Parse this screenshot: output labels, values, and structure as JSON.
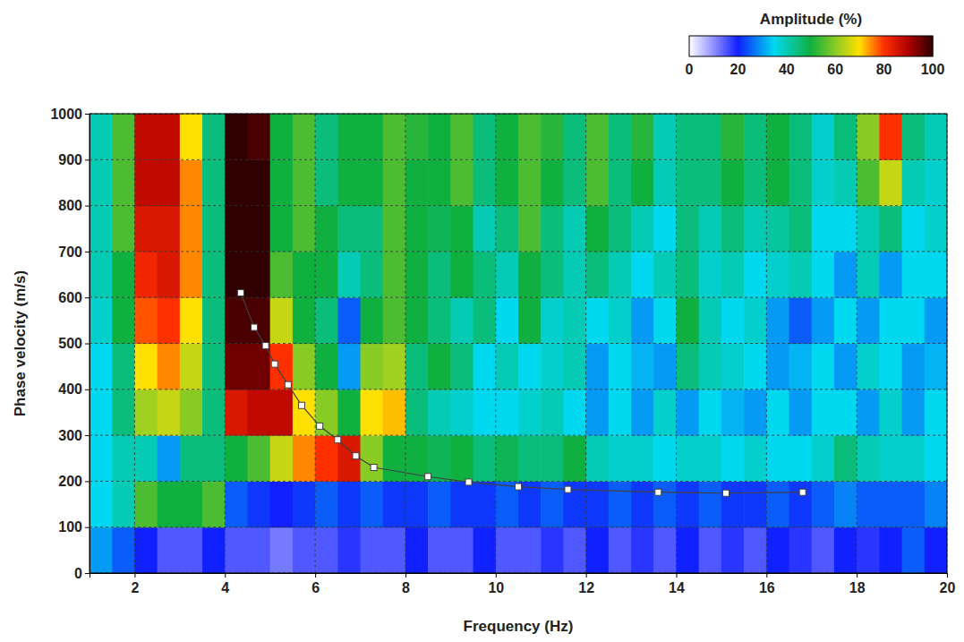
{
  "chart_data": {
    "type": "heatmap",
    "x_label": "Frequency (Hz)",
    "y_label": "Phase velocity (m/s)",
    "xlim": [
      1,
      20
    ],
    "xticks": [
      2,
      4,
      6,
      8,
      10,
      12,
      14,
      16,
      18,
      20
    ],
    "ylim": [
      0,
      1000
    ],
    "yticks": [
      0,
      100,
      200,
      300,
      400,
      500,
      600,
      700,
      800,
      900,
      1000
    ],
    "grid": true,
    "heatmap": {
      "x": [
        1.25,
        1.75,
        2.25,
        2.75,
        3.25,
        3.75,
        4.25,
        4.75,
        5.25,
        5.75,
        6.25,
        6.75,
        7.25,
        7.75,
        8.25,
        8.75,
        9.25,
        9.75,
        10.25,
        10.75,
        11.25,
        11.75,
        12.25,
        12.75,
        13.25,
        13.75,
        14.25,
        14.75,
        15.25,
        15.75,
        16.25,
        16.75,
        17.25,
        17.75,
        18.25,
        18.75,
        19.25,
        19.75
      ],
      "y": [
        50,
        150,
        250,
        350,
        450,
        550,
        650,
        750,
        850,
        950
      ],
      "cells": [
        [
          30,
          25,
          20,
          15,
          15,
          20,
          15,
          15,
          12,
          15,
          15,
          18,
          15,
          15,
          20,
          15,
          15,
          20,
          15,
          15,
          18,
          15,
          20,
          15,
          18,
          15,
          20,
          15,
          18,
          15,
          20,
          18,
          15,
          20,
          18,
          20,
          25,
          20
        ],
        [
          35,
          40,
          55,
          50,
          50,
          55,
          25,
          22,
          20,
          22,
          25,
          22,
          25,
          22,
          22,
          25,
          22,
          22,
          25,
          22,
          25,
          22,
          22,
          25,
          22,
          25,
          22,
          25,
          22,
          22,
          25,
          22,
          25,
          28,
          25,
          25,
          25,
          28
        ],
        [
          35,
          40,
          40,
          30,
          45,
          45,
          50,
          55,
          65,
          75,
          80,
          85,
          60,
          50,
          50,
          48,
          50,
          45,
          48,
          45,
          45,
          50,
          40,
          38,
          38,
          35,
          38,
          38,
          35,
          38,
          35,
          35,
          38,
          45,
          40,
          38,
          38,
          35
        ],
        [
          35,
          45,
          62,
          65,
          60,
          45,
          85,
          88,
          88,
          70,
          60,
          50,
          70,
          72,
          45,
          40,
          38,
          35,
          35,
          38,
          40,
          35,
          30,
          35,
          30,
          38,
          30,
          35,
          32,
          30,
          35,
          30,
          35,
          35,
          30,
          38,
          30,
          35
        ],
        [
          35,
          45,
          70,
          75,
          65,
          45,
          95,
          95,
          80,
          60,
          50,
          30,
          60,
          62,
          45,
          50,
          45,
          35,
          40,
          35,
          38,
          40,
          30,
          35,
          32,
          30,
          45,
          40,
          38,
          35,
          30,
          32,
          35,
          30,
          38,
          35,
          30,
          32
        ],
        [
          38,
          50,
          78,
          80,
          70,
          45,
          98,
          98,
          65,
          50,
          45,
          25,
          50,
          55,
          50,
          45,
          40,
          45,
          35,
          50,
          38,
          40,
          35,
          38,
          30,
          35,
          50,
          40,
          35,
          38,
          30,
          25,
          30,
          35,
          30,
          35,
          35,
          30
        ],
        [
          40,
          50,
          82,
          85,
          75,
          45,
          100,
          100,
          55,
          50,
          50,
          40,
          45,
          55,
          50,
          45,
          50,
          45,
          40,
          50,
          45,
          40,
          45,
          40,
          35,
          40,
          45,
          38,
          40,
          35,
          38,
          40,
          35,
          30,
          40,
          30,
          35,
          35
        ],
        [
          40,
          55,
          85,
          85,
          75,
          45,
          100,
          100,
          50,
          55,
          50,
          45,
          45,
          55,
          50,
          48,
          50,
          40,
          45,
          55,
          45,
          40,
          50,
          45,
          40,
          35,
          45,
          40,
          45,
          40,
          42,
          45,
          35,
          35,
          40,
          45,
          35,
          38
        ],
        [
          40,
          55,
          88,
          88,
          75,
          45,
          100,
          100,
          50,
          55,
          45,
          50,
          50,
          55,
          50,
          50,
          55,
          45,
          50,
          55,
          50,
          45,
          55,
          45,
          50,
          40,
          45,
          45,
          50,
          45,
          50,
          45,
          38,
          40,
          55,
          65,
          40,
          38
        ],
        [
          40,
          55,
          88,
          88,
          70,
          45,
          100,
          98,
          50,
          55,
          45,
          50,
          50,
          55,
          52,
          50,
          55,
          45,
          50,
          55,
          52,
          45,
          55,
          45,
          52,
          40,
          45,
          45,
          52,
          45,
          50,
          45,
          38,
          45,
          60,
          80,
          45,
          40
        ]
      ]
    },
    "colorbar": {
      "label": "Amplitude (%)",
      "range": [
        0,
        100
      ],
      "ticks": [
        0,
        20,
        40,
        60,
        80,
        100
      ]
    },
    "series": [
      {
        "type": "line",
        "marker": "square",
        "color": "#404040",
        "x": [
          4.35,
          4.65,
          4.9,
          5.1,
          5.4,
          5.7,
          6.1,
          6.5,
          6.9,
          7.3,
          8.5,
          9.4,
          10.5,
          11.6,
          13.6,
          15.1,
          16.8
        ],
        "values": [
          610,
          535,
          495,
          455,
          410,
          365,
          320,
          290,
          255,
          230,
          210,
          198,
          188,
          182,
          176,
          174,
          176
        ]
      }
    ]
  }
}
